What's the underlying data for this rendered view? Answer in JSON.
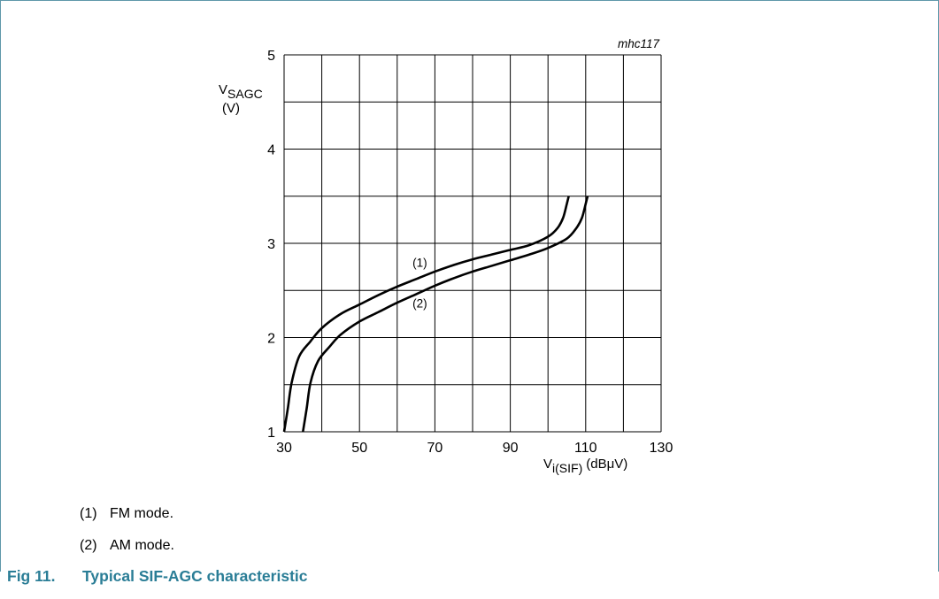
{
  "chart_data": {
    "type": "line",
    "code": "mhc117",
    "ylabel_main": "V",
    "ylabel_sub": "SAGC",
    "ylabel_unit": "(V)",
    "xlabel_main": "V",
    "xlabel_sub": "i(SIF)",
    "xlabel_unit": "(dBμV)",
    "xlim": [
      30,
      130
    ],
    "ylim": [
      1,
      5
    ],
    "x_ticks": [
      30,
      50,
      70,
      90,
      110,
      130
    ],
    "y_ticks": [
      1,
      2,
      3,
      4,
      5
    ],
    "x_grid_step": 10,
    "y_grid_step": 0.5,
    "grid": true,
    "series": [
      {
        "name": "(1)",
        "label_at": [
          66,
          2.75
        ],
        "points": [
          [
            30,
            1.0
          ],
          [
            31,
            1.25
          ],
          [
            32,
            1.52
          ],
          [
            34,
            1.8
          ],
          [
            37,
            1.96
          ],
          [
            40,
            2.1
          ],
          [
            45,
            2.25
          ],
          [
            50,
            2.35
          ],
          [
            55,
            2.45
          ],
          [
            60,
            2.54
          ],
          [
            65,
            2.62
          ],
          [
            70,
            2.7
          ],
          [
            75,
            2.77
          ],
          [
            80,
            2.83
          ],
          [
            85,
            2.88
          ],
          [
            90,
            2.93
          ],
          [
            95,
            2.98
          ],
          [
            100,
            3.07
          ],
          [
            102.5,
            3.16
          ],
          [
            104,
            3.27
          ],
          [
            105,
            3.42
          ],
          [
            105.5,
            3.5
          ]
        ]
      },
      {
        "name": "(2)",
        "label_at": [
          66,
          2.32
        ],
        "points": [
          [
            35,
            1.0
          ],
          [
            36,
            1.25
          ],
          [
            37,
            1.52
          ],
          [
            39,
            1.75
          ],
          [
            42,
            1.9
          ],
          [
            45,
            2.03
          ],
          [
            50,
            2.17
          ],
          [
            55,
            2.27
          ],
          [
            60,
            2.37
          ],
          [
            65,
            2.46
          ],
          [
            70,
            2.55
          ],
          [
            75,
            2.63
          ],
          [
            80,
            2.7
          ],
          [
            85,
            2.76
          ],
          [
            90,
            2.82
          ],
          [
            95,
            2.88
          ],
          [
            100,
            2.95
          ],
          [
            105,
            3.05
          ],
          [
            107.5,
            3.16
          ],
          [
            109,
            3.27
          ],
          [
            110,
            3.42
          ],
          [
            110.5,
            3.5
          ]
        ]
      }
    ]
  },
  "legend": [
    {
      "number": "(1)",
      "text": "FM mode."
    },
    {
      "number": "(2)",
      "text": "AM mode."
    }
  ],
  "caption": {
    "number": "Fig 11.",
    "title": "Typical SIF-AGC characteristic"
  },
  "colors": {
    "accent": "#2a7d96",
    "border": "#5f97a9"
  }
}
